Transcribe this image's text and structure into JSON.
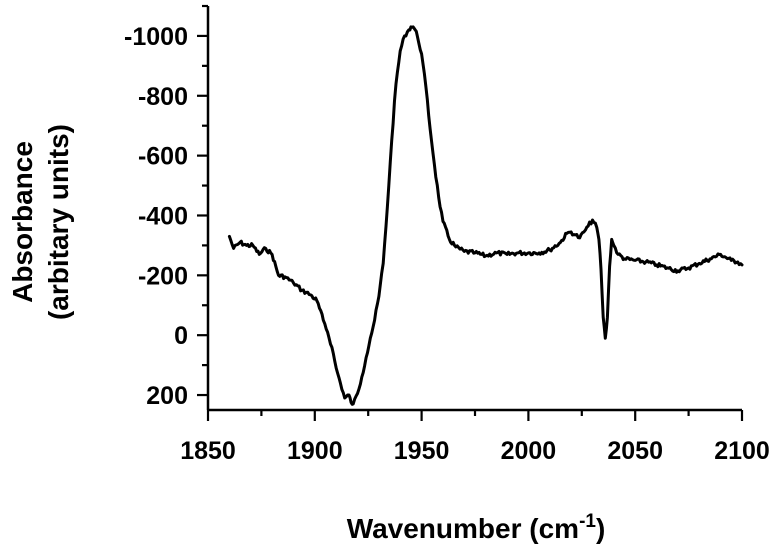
{
  "chart_data": {
    "type": "line",
    "title": "",
    "xlabel": "Wavenumber (cm",
    "xlabel_sup": "-1",
    "xlabel_tail": ")",
    "ylabel_line1": "Absorbance",
    "ylabel_line2": "(arbitary units)",
    "xlim": [
      1850,
      2100
    ],
    "ylim": [
      250,
      -1100
    ],
    "y_inverted": true,
    "grid": false,
    "x_ticks": [
      1850,
      1900,
      1950,
      2000,
      2050,
      2100
    ],
    "x_tick_labels": [
      "1850",
      "1900",
      "1950",
      "2000",
      "2050",
      "2100"
    ],
    "y_ticks": [
      200,
      0,
      -200,
      -400,
      -600,
      -800,
      -1000
    ],
    "y_tick_labels": [
      "200",
      "0",
      "-200",
      "-400",
      "-600",
      "-800",
      "-1000"
    ],
    "series": [
      {
        "color": "#000000",
        "x": [
          1860,
          1862,
          1865,
          1868,
          1871,
          1874,
          1877,
          1880,
          1883,
          1886,
          1890,
          1894,
          1898,
          1901,
          1904,
          1906,
          1908,
          1910,
          1912,
          1914,
          1916,
          1917,
          1918,
          1920,
          1922,
          1924,
          1926,
          1928,
          1930,
          1932,
          1934,
          1936,
          1938,
          1940,
          1942,
          1944,
          1945,
          1946,
          1947,
          1948,
          1950,
          1952,
          1954,
          1956,
          1958,
          1960,
          1963,
          1966,
          1970,
          1975,
          1980,
          1985,
          1990,
          1995,
          2000,
          2005,
          2010,
          2015,
          2018,
          2020,
          2022,
          2024,
          2026,
          2028,
          2030,
          2032,
          2033,
          2034,
          2035,
          2036,
          2037,
          2038,
          2039,
          2040,
          2042,
          2045,
          2050,
          2055,
          2060,
          2065,
          2070,
          2075,
          2080,
          2085,
          2090,
          2095,
          2098,
          2100
        ],
        "y": [
          -330,
          -290,
          -310,
          -300,
          -300,
          -270,
          -290,
          -270,
          -200,
          -195,
          -175,
          -150,
          -135,
          -115,
          -50,
          -10,
          40,
          110,
          160,
          210,
          200,
          225,
          230,
          195,
          140,
          75,
          10,
          -50,
          -130,
          -240,
          -430,
          -650,
          -840,
          -950,
          -1000,
          -1020,
          -1030,
          -1030,
          -1020,
          -1000,
          -940,
          -830,
          -690,
          -570,
          -460,
          -380,
          -320,
          -295,
          -280,
          -275,
          -265,
          -275,
          -270,
          -275,
          -275,
          -275,
          -285,
          -310,
          -340,
          -345,
          -335,
          -325,
          -345,
          -365,
          -385,
          -360,
          -320,
          -220,
          -60,
          10,
          -60,
          -230,
          -320,
          -300,
          -270,
          -255,
          -250,
          -245,
          -235,
          -225,
          -215,
          -225,
          -240,
          -255,
          -270,
          -250,
          -245,
          -235
        ]
      }
    ]
  }
}
